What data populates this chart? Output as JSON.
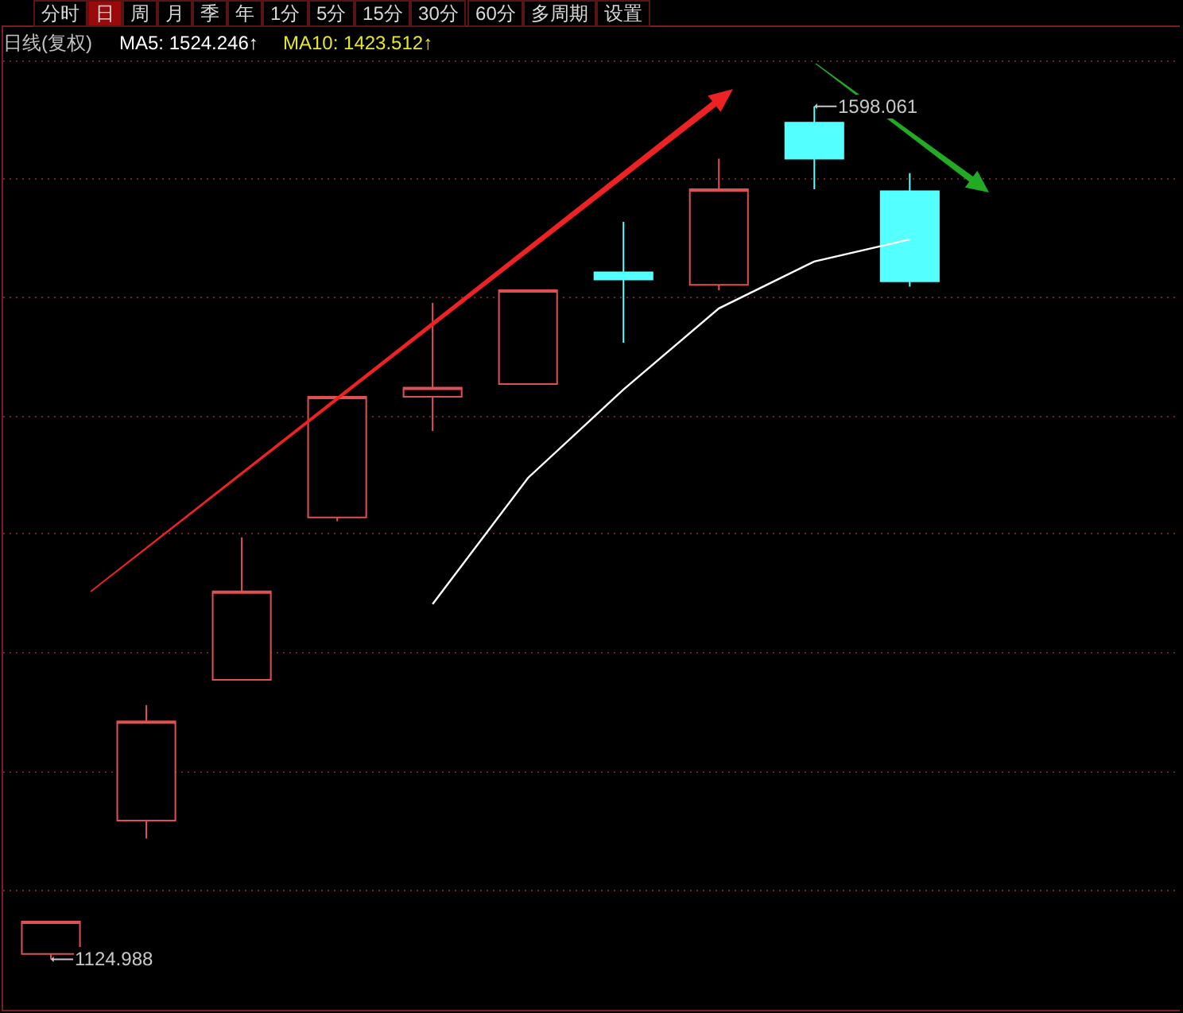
{
  "chart_data": [
    {
      "type": "other",
      "annotations": [
        "分时",
        "日",
        "周",
        "月",
        "季",
        "年",
        "1分",
        "5分",
        "15分",
        "30分",
        "60分",
        "多周期",
        "设置"
      ]
    },
    {
      "type": "candlestick",
      "title": "日线(复权)",
      "categories": [
        null,
        null,
        null,
        null,
        null,
        null,
        null,
        null,
        null,
        null
      ],
      "ohlc": [
        [
          1128,
          1146,
          1124.988,
          1146
        ],
        [
          1202,
          1266,
          1192,
          1257
        ],
        [
          1280,
          1359,
          1280,
          1329
        ],
        [
          1370,
          1437,
          1368,
          1437
        ],
        [
          1437,
          1489,
          1418,
          1442
        ],
        [
          1444,
          1496,
          1444,
          1496
        ],
        [
          1506,
          1534,
          1467,
          1502
        ],
        [
          1499,
          1569,
          1496,
          1552
        ],
        [
          1589,
          1598.061,
          1552,
          1569
        ],
        [
          1551,
          1561,
          1498,
          1501
        ]
      ],
      "value_labels": [
        "1124.988",
        null,
        null,
        null,
        null,
        null,
        null,
        null,
        "1598.061",
        null
      ],
      "colors": [
        "#e05050",
        "#e05050",
        "#e05050",
        "#e05050",
        "#e05050",
        "#e05050",
        "#54ffff",
        "#e05050",
        "#54ffff",
        "#54ffff"
      ],
      "series": [
        {
          "type": "line",
          "name": "MA5: 1524.246↑",
          "color": "#ffffff",
          "values": [
            null,
            null,
            null,
            null,
            1322,
            1392,
            1441,
            1486,
            1512,
            1524.246
          ]
        }
      ],
      "annotations": [
        "MA10: 1423.512↑"
      ],
      "ylim": [
        1097,
        1642
      ],
      "yticks": [
        {
          "value": 1163,
          "label": null
        },
        {
          "value": 1229,
          "label": null
        },
        {
          "value": 1295,
          "label": null
        },
        {
          "value": 1361,
          "label": null
        },
        {
          "value": 1426,
          "label": null
        },
        {
          "value": 1492,
          "label": null
        },
        {
          "value": 1558,
          "label": null
        },
        {
          "value": 1623,
          "label": null
        }
      ],
      "grid": "y"
    }
  ]
}
